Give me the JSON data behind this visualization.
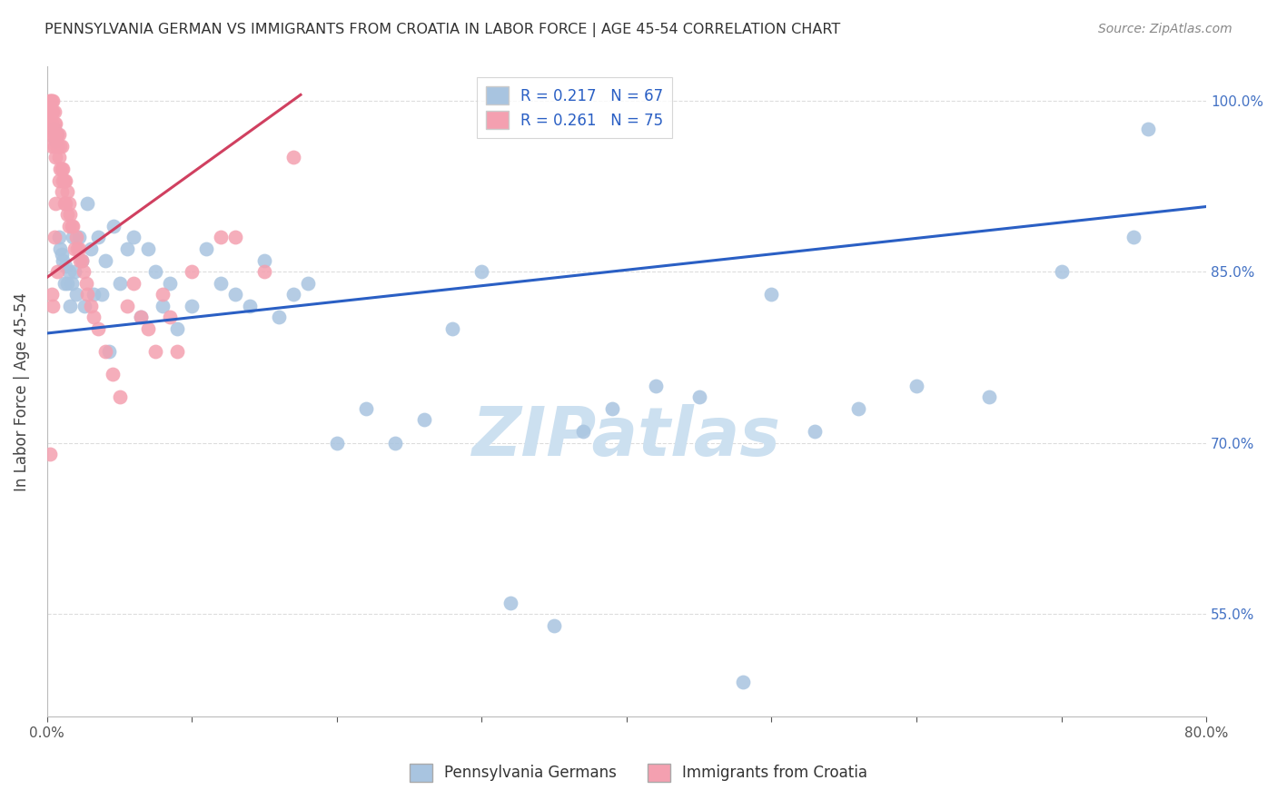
{
  "title": "PENNSYLVANIA GERMAN VS IMMIGRANTS FROM CROATIA IN LABOR FORCE | AGE 45-54 CORRELATION CHART",
  "source": "Source: ZipAtlas.com",
  "ylabel": "In Labor Force | Age 45-54",
  "xlim": [
    0.0,
    0.8
  ],
  "ylim": [
    0.46,
    1.03
  ],
  "yticks": [
    0.55,
    0.7,
    0.85,
    1.0
  ],
  "ytick_labels": [
    "55.0%",
    "70.0%",
    "85.0%",
    "100.0%"
  ],
  "xticks": [
    0.0,
    0.1,
    0.2,
    0.3,
    0.4,
    0.5,
    0.6,
    0.7,
    0.8
  ],
  "xtick_labels": [
    "0.0%",
    "",
    "",
    "",
    "",
    "",
    "",
    "",
    "80.0%"
  ],
  "blue_R": 0.217,
  "blue_N": 67,
  "pink_R": 0.261,
  "pink_N": 75,
  "blue_color": "#a8c4e0",
  "pink_color": "#f4a0b0",
  "blue_line_color": "#2a5fc4",
  "pink_line_color": "#d04060",
  "grid_color": "#dddddd",
  "right_axis_color": "#4472c4",
  "watermark_color": "#cce0f0",
  "blue_scatter_x": [
    0.004,
    0.005,
    0.006,
    0.007,
    0.008,
    0.009,
    0.01,
    0.011,
    0.012,
    0.013,
    0.014,
    0.015,
    0.016,
    0.017,
    0.018,
    0.019,
    0.02,
    0.022,
    0.024,
    0.026,
    0.028,
    0.03,
    0.032,
    0.035,
    0.038,
    0.04,
    0.043,
    0.046,
    0.05,
    0.055,
    0.06,
    0.065,
    0.07,
    0.075,
    0.08,
    0.085,
    0.09,
    0.1,
    0.11,
    0.12,
    0.13,
    0.14,
    0.15,
    0.16,
    0.17,
    0.18,
    0.2,
    0.22,
    0.24,
    0.26,
    0.28,
    0.3,
    0.32,
    0.35,
    0.37,
    0.39,
    0.42,
    0.45,
    0.48,
    0.5,
    0.53,
    0.56,
    0.6,
    0.65,
    0.7,
    0.75,
    0.76
  ],
  "blue_scatter_y": [
    0.975,
    0.975,
    0.965,
    0.97,
    0.88,
    0.87,
    0.865,
    0.86,
    0.84,
    0.855,
    0.84,
    0.85,
    0.82,
    0.84,
    0.88,
    0.85,
    0.83,
    0.88,
    0.86,
    0.82,
    0.91,
    0.87,
    0.83,
    0.88,
    0.83,
    0.86,
    0.78,
    0.89,
    0.84,
    0.87,
    0.88,
    0.81,
    0.87,
    0.85,
    0.82,
    0.84,
    0.8,
    0.82,
    0.87,
    0.84,
    0.83,
    0.82,
    0.86,
    0.81,
    0.83,
    0.84,
    0.7,
    0.73,
    0.7,
    0.72,
    0.8,
    0.85,
    0.56,
    0.54,
    0.71,
    0.73,
    0.75,
    0.74,
    0.49,
    0.83,
    0.71,
    0.73,
    0.75,
    0.74,
    0.85,
    0.88,
    0.975
  ],
  "pink_scatter_x": [
    0.002,
    0.002,
    0.002,
    0.002,
    0.002,
    0.003,
    0.003,
    0.003,
    0.003,
    0.004,
    0.004,
    0.004,
    0.005,
    0.005,
    0.005,
    0.006,
    0.006,
    0.006,
    0.007,
    0.007,
    0.008,
    0.008,
    0.008,
    0.009,
    0.009,
    0.01,
    0.01,
    0.01,
    0.011,
    0.011,
    0.012,
    0.012,
    0.013,
    0.013,
    0.014,
    0.014,
    0.015,
    0.015,
    0.016,
    0.017,
    0.018,
    0.019,
    0.02,
    0.021,
    0.022,
    0.023,
    0.024,
    0.025,
    0.027,
    0.028,
    0.03,
    0.032,
    0.035,
    0.04,
    0.045,
    0.05,
    0.055,
    0.06,
    0.065,
    0.07,
    0.075,
    0.08,
    0.085,
    0.09,
    0.1,
    0.12,
    0.13,
    0.15,
    0.17,
    0.002,
    0.003,
    0.004,
    0.005,
    0.006,
    0.007
  ],
  "pink_scatter_y": [
    1.0,
    1.0,
    0.99,
    0.98,
    0.97,
    1.0,
    0.99,
    0.98,
    0.96,
    1.0,
    0.99,
    0.97,
    0.99,
    0.98,
    0.96,
    0.98,
    0.97,
    0.95,
    0.97,
    0.96,
    0.97,
    0.95,
    0.93,
    0.96,
    0.94,
    0.96,
    0.94,
    0.92,
    0.94,
    0.93,
    0.93,
    0.91,
    0.93,
    0.91,
    0.92,
    0.9,
    0.91,
    0.89,
    0.9,
    0.89,
    0.89,
    0.87,
    0.88,
    0.87,
    0.87,
    0.86,
    0.86,
    0.85,
    0.84,
    0.83,
    0.82,
    0.81,
    0.8,
    0.78,
    0.76,
    0.74,
    0.82,
    0.84,
    0.81,
    0.8,
    0.78,
    0.83,
    0.81,
    0.78,
    0.85,
    0.88,
    0.88,
    0.85,
    0.95,
    0.69,
    0.83,
    0.82,
    0.88,
    0.91,
    0.85
  ],
  "blue_line_x": [
    0.0,
    0.8
  ],
  "blue_line_y": [
    0.796,
    0.907
  ],
  "pink_line_x": [
    0.0,
    0.175
  ],
  "pink_line_y": [
    0.845,
    1.005
  ]
}
